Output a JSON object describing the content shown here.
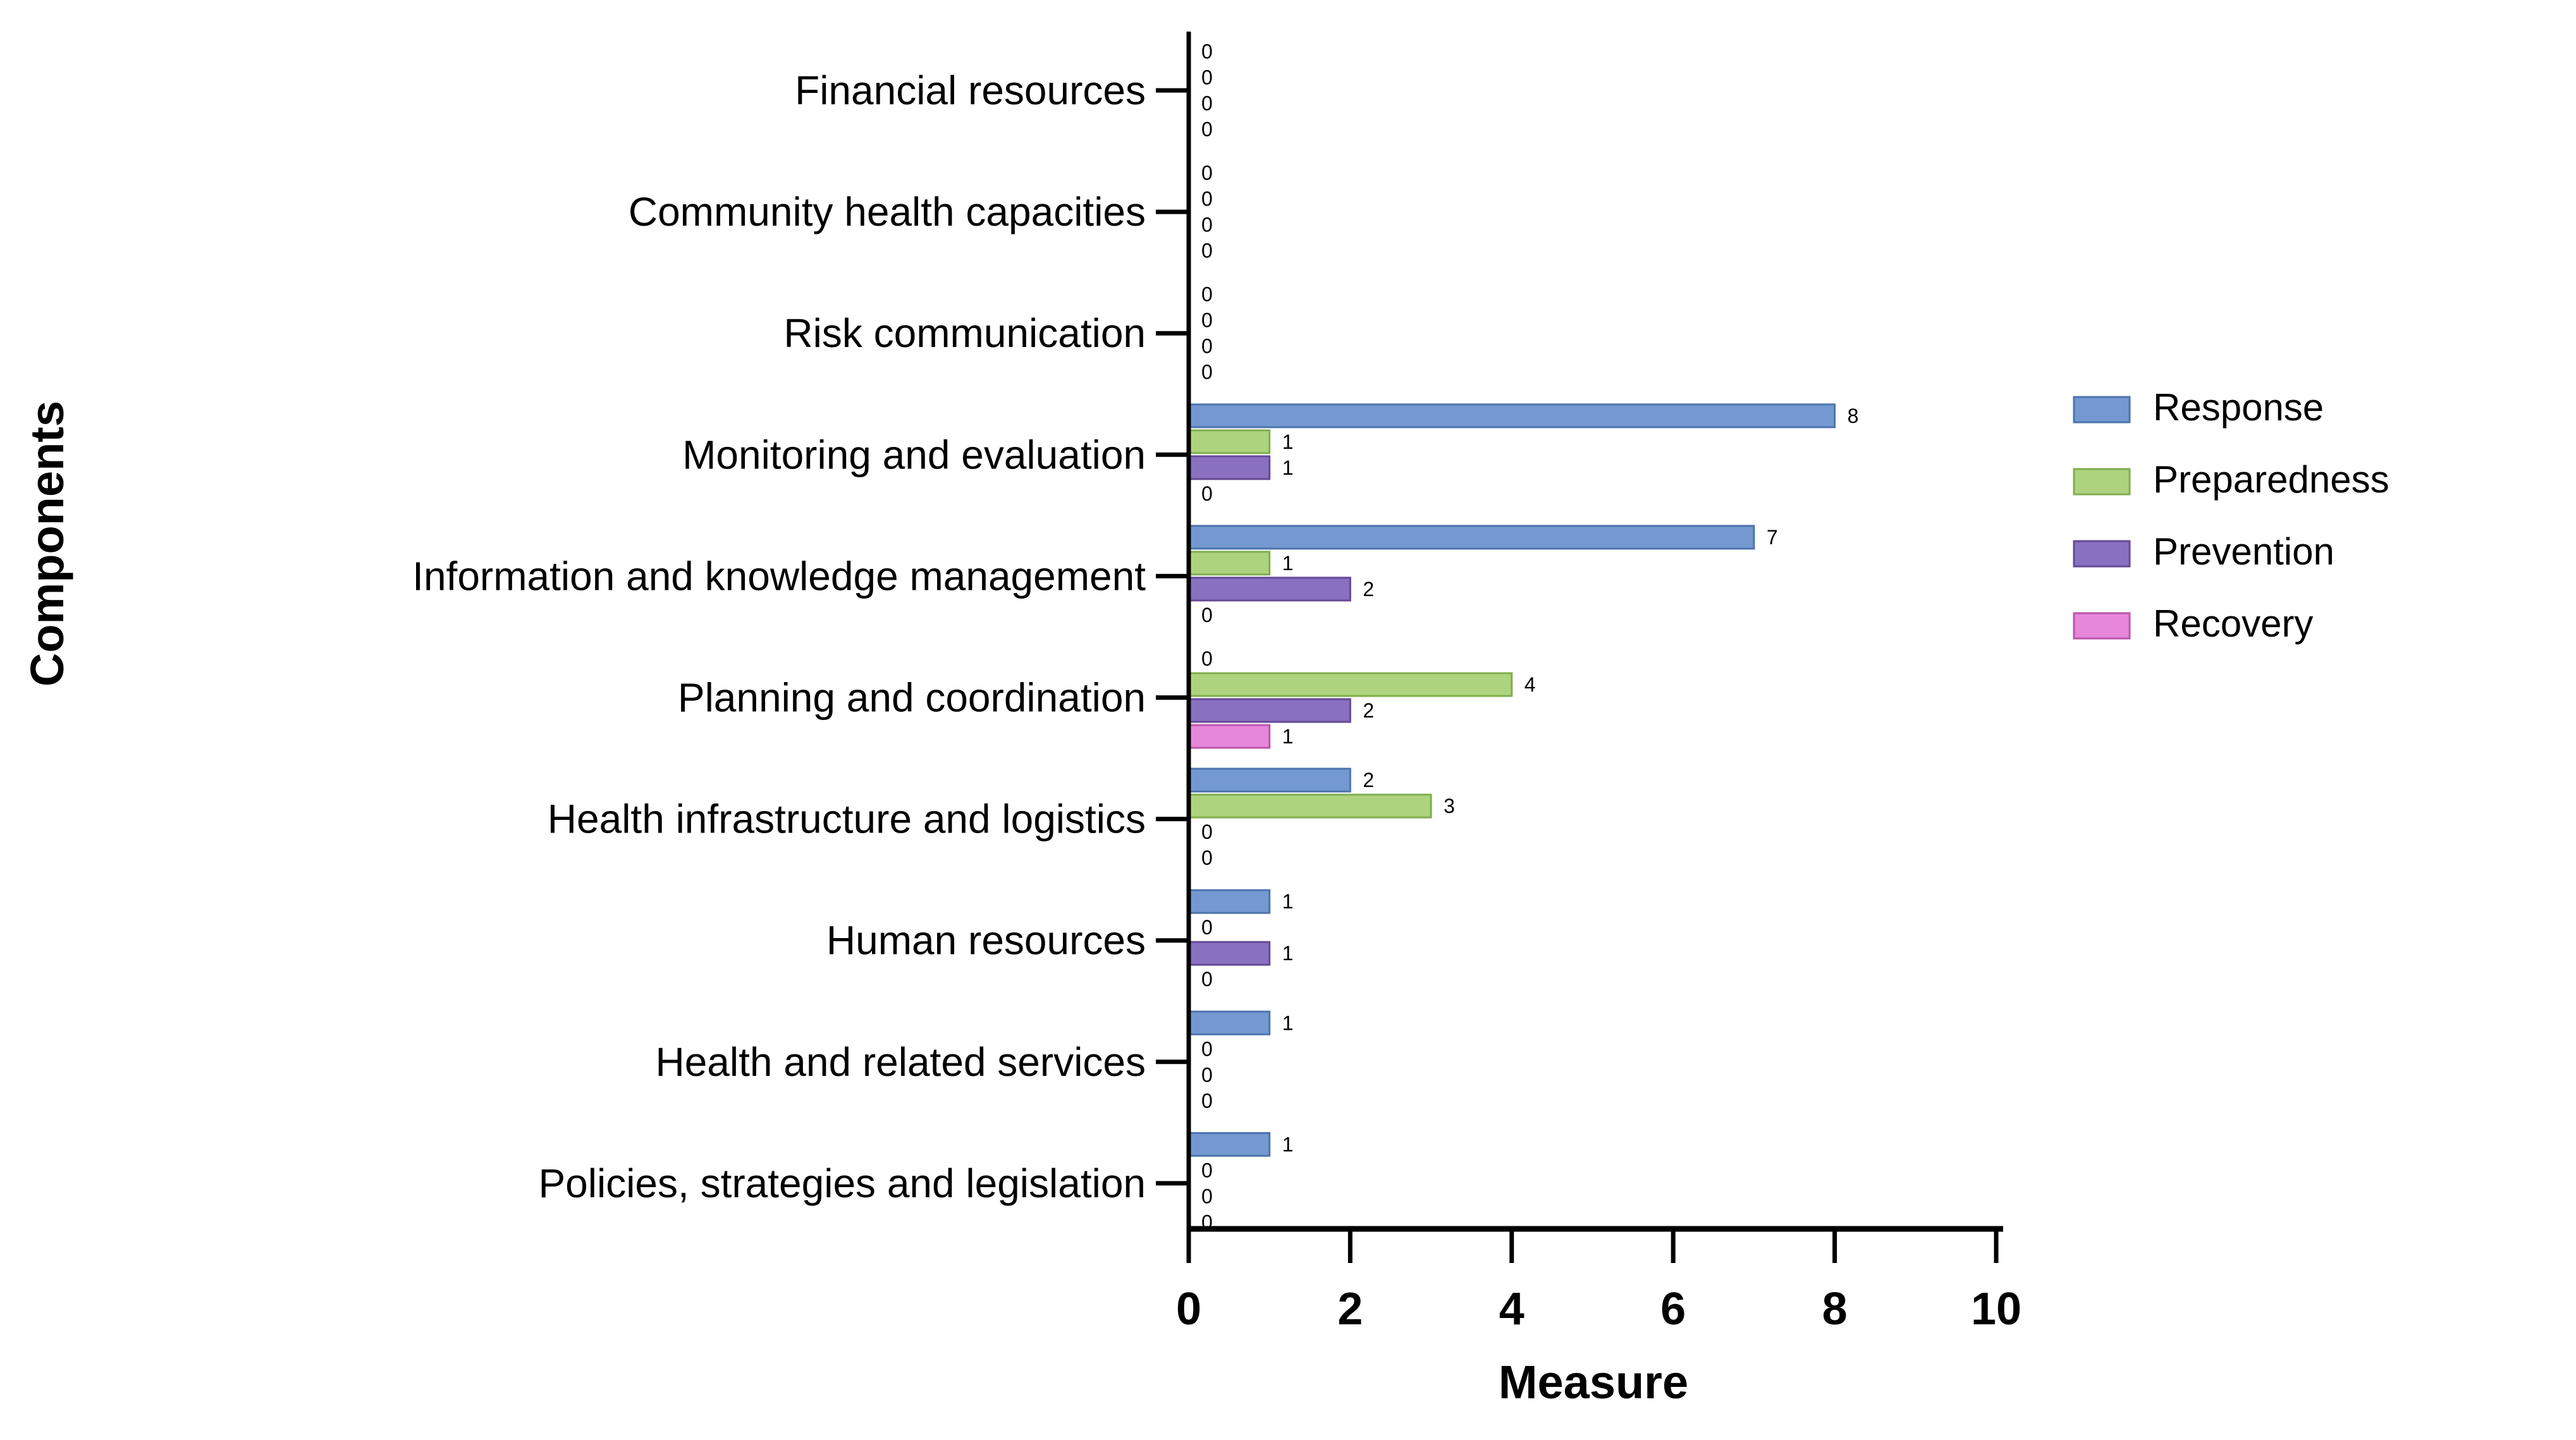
{
  "chart_data": {
    "type": "bar",
    "orientation": "horizontal",
    "title": "",
    "xlabel": "Measure",
    "ylabel": "Components",
    "xlim": [
      0,
      10
    ],
    "x_ticks": [
      "0",
      "2",
      "4",
      "6",
      "8",
      "10"
    ],
    "x_tick_values": [
      0,
      2,
      4,
      6,
      8,
      10
    ],
    "grid": false,
    "legend_position": "right",
    "value_labels_shown": true,
    "categories": [
      "Financial resources",
      "Community health capacities",
      "Risk communication",
      "Monitoring and evaluation",
      "Information and knowledge management",
      "Planning and coordination",
      "Health infrastructure and logistics",
      "Human resources",
      "Health and related services",
      "Policies, strategies and legislation"
    ],
    "series": [
      {
        "name": "Response",
        "color": "#7499d1",
        "border": "#4d74ad",
        "values": [
          0,
          0,
          0,
          8,
          7,
          0,
          2,
          1,
          1,
          1
        ]
      },
      {
        "name": "Preparedness",
        "color": "#aed37f",
        "border": "#7fae4e",
        "values": [
          0,
          0,
          0,
          1,
          1,
          4,
          3,
          0,
          0,
          0
        ]
      },
      {
        "name": "Prevention",
        "color": "#8a70c1",
        "border": "#654a96",
        "values": [
          0,
          0,
          0,
          1,
          2,
          2,
          0,
          1,
          0,
          0
        ]
      },
      {
        "name": "Recovery",
        "color": "#e787da",
        "border": "#bc55ab",
        "values": [
          0,
          0,
          0,
          0,
          0,
          1,
          0,
          0,
          0,
          0
        ]
      }
    ],
    "colors": {
      "axis": "#000000",
      "value_label": "#3f3f3f",
      "background": "#ffffff"
    }
  }
}
